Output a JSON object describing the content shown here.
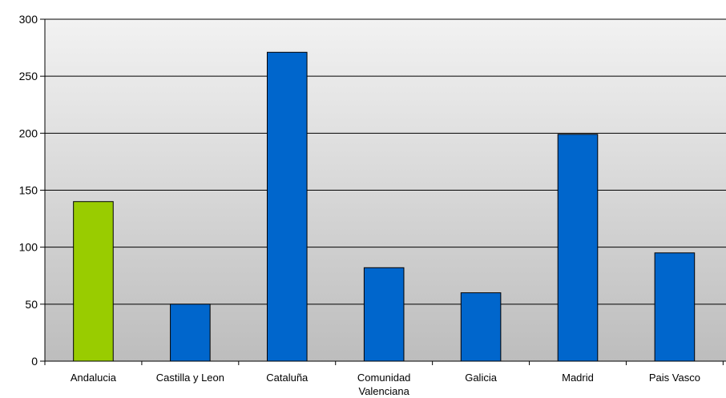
{
  "chart_data": {
    "type": "bar",
    "title": "",
    "xlabel": "",
    "ylabel": "",
    "ylim": [
      0,
      300
    ],
    "yticks": [
      0,
      50,
      100,
      150,
      200,
      250,
      300
    ],
    "grid": true,
    "legend": "none",
    "categories": [
      "Andalucia",
      "Castilla y Leon",
      "Cataluña",
      "Comunidad Valenciana",
      "Galicia",
      "Madrid",
      "Pais Vasco"
    ],
    "category_lines": [
      [
        "Andalucia"
      ],
      [
        "Castilla y Leon"
      ],
      [
        "Cataluña"
      ],
      [
        "Comunidad",
        "Valenciana"
      ],
      [
        "Galicia"
      ],
      [
        "Madrid"
      ],
      [
        "Pais Vasco"
      ]
    ],
    "values": [
      140,
      50,
      271,
      82,
      60,
      199,
      95
    ],
    "bar_colors": [
      "#99cc00",
      "#0066cc",
      "#0066cc",
      "#0066cc",
      "#0066cc",
      "#0066cc",
      "#0066cc"
    ]
  }
}
